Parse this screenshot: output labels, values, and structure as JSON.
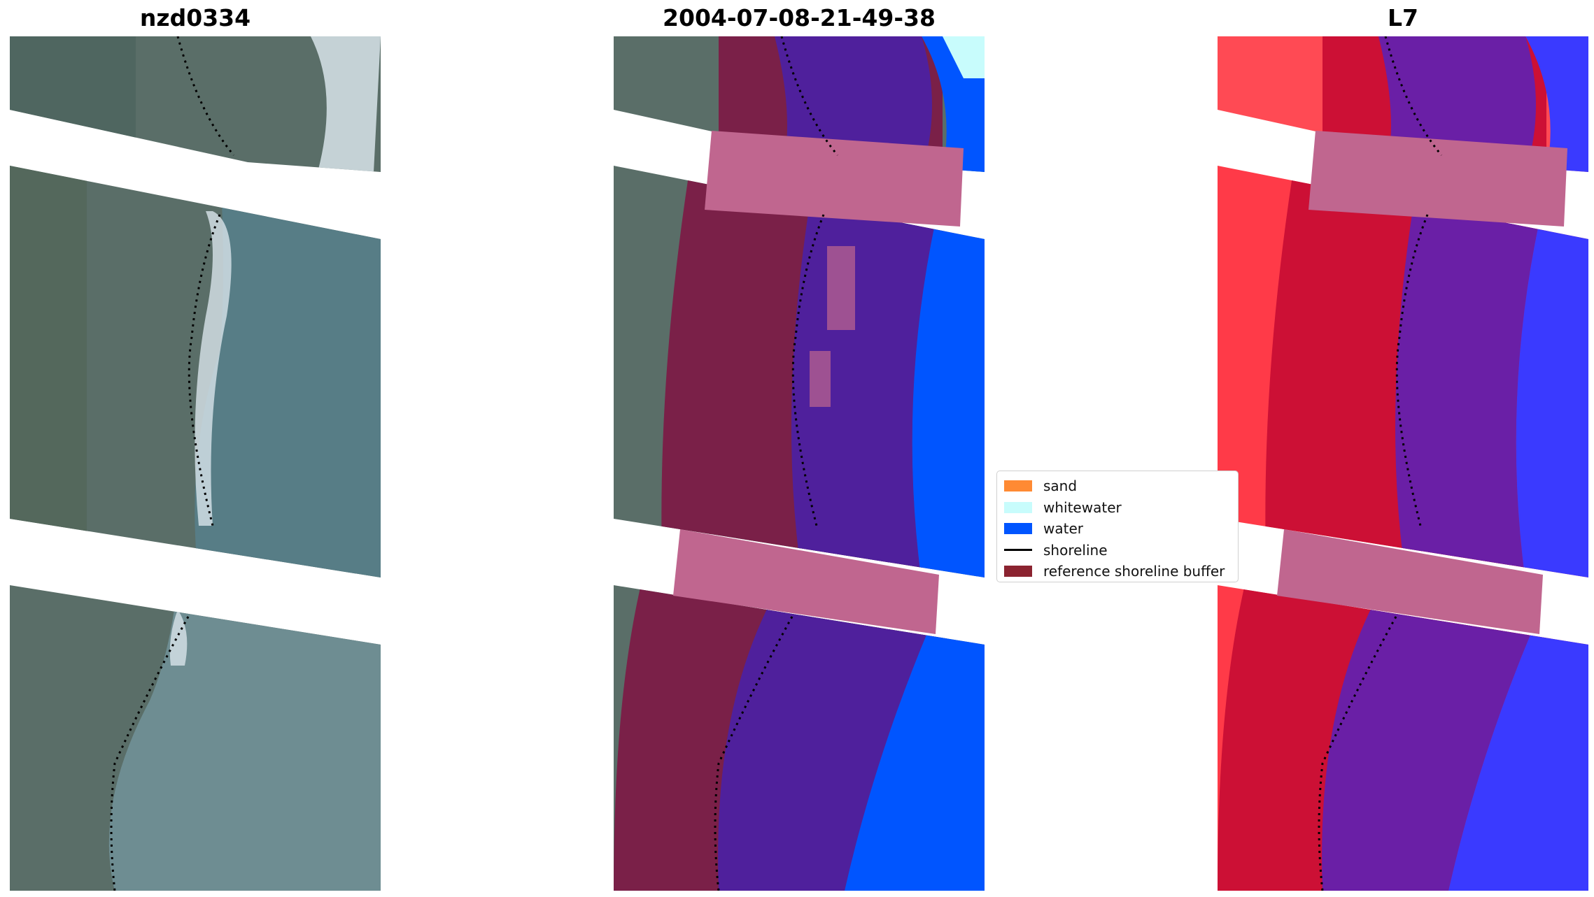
{
  "panels": [
    {
      "title": "nzd0334",
      "kind": "rgb"
    },
    {
      "title": "2004-07-08-21-49-38",
      "kind": "classified"
    },
    {
      "title": "L7",
      "kind": "index"
    }
  ],
  "legend": {
    "items": [
      {
        "label": "sand",
        "type": "patch",
        "color": "#ff8a33"
      },
      {
        "label": "whitewater",
        "type": "patch",
        "color": "#c8fcfc"
      },
      {
        "label": "water",
        "type": "patch",
        "color": "#0055ff"
      },
      {
        "label": "shoreline",
        "type": "line",
        "color": "#000000"
      },
      {
        "label": "reference shoreline buffer",
        "type": "patch",
        "color": "#8b2330"
      }
    ]
  },
  "colors": {
    "land_rgb": "#5a6e68",
    "water_rgb": "#577d86",
    "surf": "#d8e4ea",
    "land_classified": "#7a2048",
    "water_classified": "#4f209c",
    "water_class": "#0055ff",
    "buffer_band": "#c0668f",
    "land_index": "#cc1035",
    "land_index_bright": "#ff3a48",
    "water_index": "#6a1fa6",
    "sea_index": "#3a3aff"
  }
}
